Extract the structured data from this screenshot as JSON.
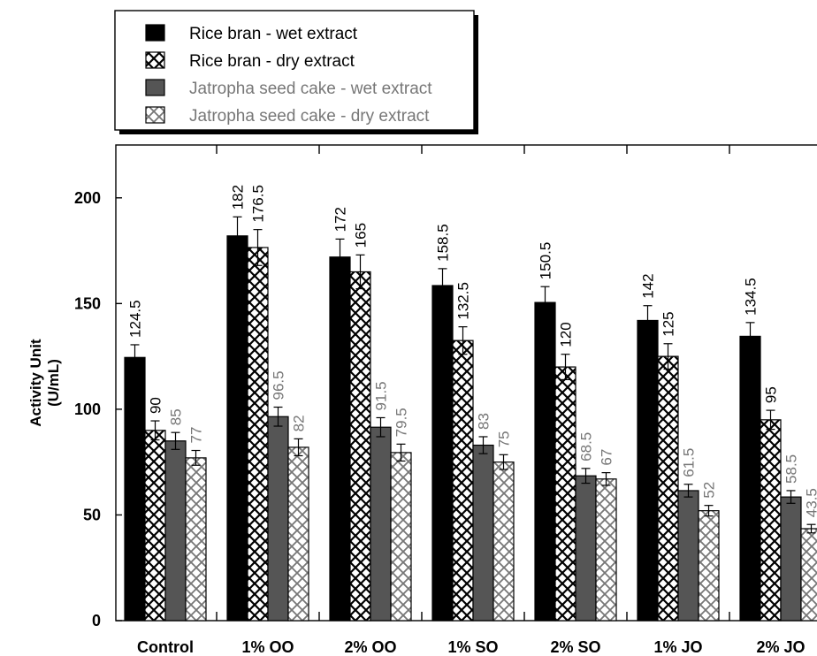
{
  "chart_data": {
    "type": "bar",
    "ylabel_lines": [
      "Activity Unit",
      "(U/mL)"
    ],
    "categories": [
      "Control",
      "1% OO",
      "2% OO",
      "1% SO",
      "2% SO",
      "1% JO",
      "2% JO"
    ],
    "yticks": [
      0,
      50,
      100,
      150,
      200
    ],
    "ylim": [
      0,
      225
    ],
    "grid": false,
    "legend_position": "top-left",
    "error_bars": true,
    "series": [
      {
        "name": "Rice bran - wet extract",
        "values": [
          124.5,
          182,
          172,
          158.5,
          150.5,
          142,
          134.5
        ],
        "labels": [
          "124.5",
          "182",
          "172",
          "158.5",
          "150.5",
          "142",
          "134.5"
        ],
        "errors": [
          6,
          9,
          8.5,
          8,
          7.5,
          7,
          6.5
        ],
        "fill": "#000000",
        "pattern": "solid",
        "label_color": "#000000"
      },
      {
        "name": "Rice bran - dry extract",
        "values": [
          90,
          176.5,
          165,
          132.5,
          120,
          125,
          95
        ],
        "labels": [
          "90",
          "176.5",
          "165",
          "132.5",
          "120",
          "125",
          "95"
        ],
        "errors": [
          4.5,
          8.5,
          8,
          6.5,
          6,
          6,
          4.5
        ],
        "fill": "#ffffff",
        "pattern": "crosshatch",
        "label_color": "#000000"
      },
      {
        "name": "Jatropha seed cake - wet extract",
        "values": [
          85,
          96.5,
          91.5,
          83,
          68.5,
          61.5,
          58.5
        ],
        "labels": [
          "85",
          "96.5",
          "91.5",
          "83",
          "68.5",
          "61.5",
          "58.5"
        ],
        "errors": [
          4,
          4.5,
          4.5,
          4,
          3.5,
          3,
          3
        ],
        "fill": "#555555",
        "pattern": "solid",
        "label_color": "#777777"
      },
      {
        "name": "Jatropha seed cake - dry extract",
        "values": [
          77,
          82,
          79.5,
          75,
          67,
          52,
          43.5
        ],
        "labels": [
          "77",
          "82",
          "79.5",
          "75",
          "67",
          "52",
          "43.5"
        ],
        "errors": [
          3.5,
          4,
          4,
          3.5,
          3,
          2.5,
          2
        ],
        "fill": "#ffffff",
        "pattern": "crosshatch-gray",
        "label_color": "#777777"
      }
    ]
  }
}
